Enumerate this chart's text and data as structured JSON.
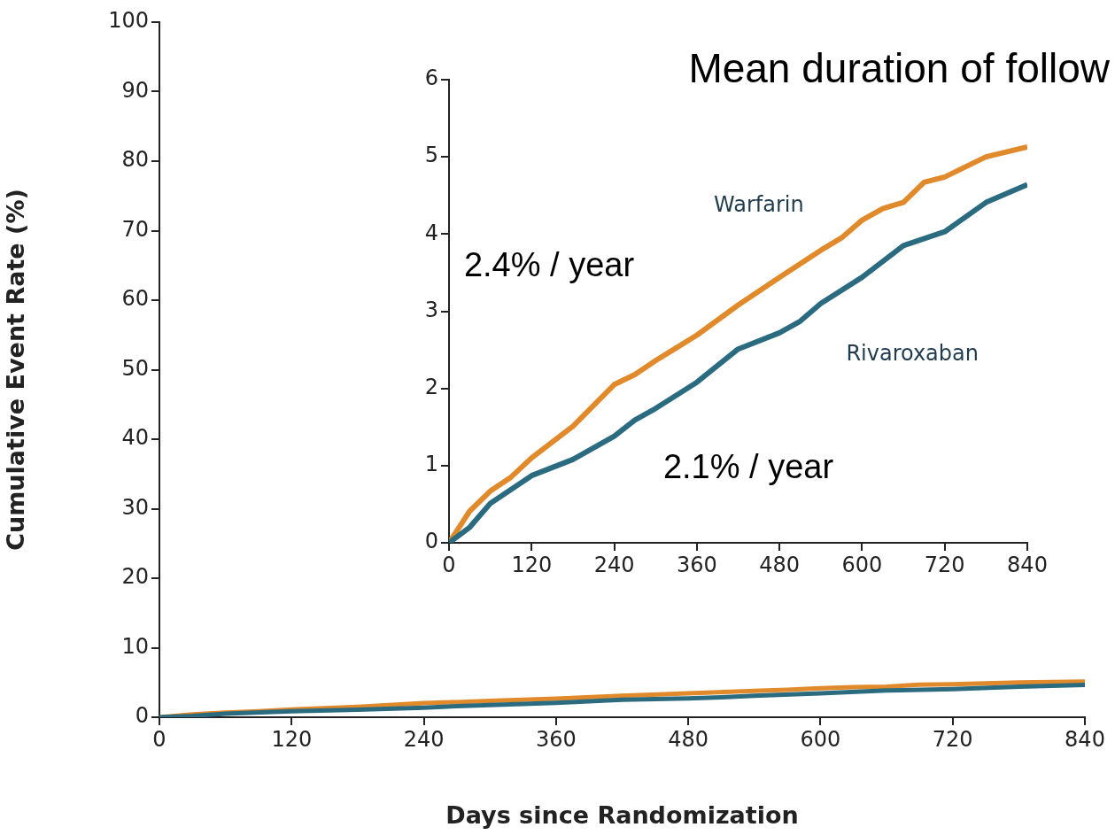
{
  "chart_data": [
    {
      "type": "line",
      "xlabel": "Days since Randomization",
      "ylabel": "Cumulative Event Rate (%)",
      "annotations": [
        "Mean duration of follow"
      ],
      "xlim": [
        0,
        840
      ],
      "xticks": [
        0,
        120,
        240,
        360,
        480,
        600,
        720,
        840
      ],
      "ylim": [
        0,
        100
      ],
      "yticks": [
        0,
        10,
        20,
        30,
        40,
        50,
        60,
        70,
        80,
        90,
        100
      ],
      "grid": false,
      "legend": false,
      "marker": "none",
      "series": [
        {
          "color": "#2b6b80",
          "x": [
            0,
            30,
            60,
            120,
            180,
            240,
            270,
            300,
            360,
            420,
            480,
            510,
            540,
            600,
            660,
            720,
            780,
            840
          ],
          "values": [
            0,
            0.2,
            0.51,
            0.87,
            1.08,
            1.38,
            1.59,
            1.74,
            2.08,
            2.51,
            2.72,
            2.87,
            3.1,
            3.44,
            3.85,
            4.03,
            4.41,
            4.64
          ]
        },
        {
          "color": "#e08a2c",
          "x": [
            0,
            30,
            60,
            90,
            120,
            180,
            240,
            270,
            300,
            360,
            420,
            480,
            540,
            570,
            600,
            630,
            660,
            690,
            720,
            780,
            840
          ],
          "values": [
            0,
            0.41,
            0.67,
            0.85,
            1.1,
            1.51,
            2.05,
            2.18,
            2.36,
            2.69,
            3.08,
            3.44,
            3.79,
            3.95,
            4.18,
            4.33,
            4.41,
            4.67,
            4.74,
            5.0,
            5.13
          ]
        }
      ]
    },
    {
      "type": "line",
      "annotations": [
        "2.4% / year",
        "2.1% / year"
      ],
      "xlim": [
        0,
        840
      ],
      "xticks": [
        0,
        120,
        240,
        360,
        480,
        600,
        720,
        840
      ],
      "ylim": [
        0,
        6
      ],
      "yticks": [
        0,
        1,
        2,
        3,
        4,
        5,
        6
      ],
      "grid": false,
      "legend": false,
      "marker": "none",
      "series": [
        {
          "name": "Rivaroxaban",
          "color": "#2b6b80",
          "x": [
            0,
            30,
            60,
            120,
            180,
            240,
            270,
            300,
            360,
            420,
            480,
            510,
            540,
            600,
            660,
            720,
            780,
            840
          ],
          "values": [
            0,
            0.2,
            0.51,
            0.87,
            1.08,
            1.38,
            1.59,
            1.74,
            2.08,
            2.51,
            2.72,
            2.87,
            3.1,
            3.44,
            3.85,
            4.03,
            4.41,
            4.64
          ]
        },
        {
          "name": "Warfarin",
          "color": "#e08a2c",
          "x": [
            0,
            30,
            60,
            90,
            120,
            180,
            240,
            270,
            300,
            360,
            420,
            480,
            540,
            570,
            600,
            630,
            660,
            690,
            720,
            780,
            840
          ],
          "values": [
            0,
            0.41,
            0.67,
            0.85,
            1.1,
            1.51,
            2.05,
            2.18,
            2.36,
            2.69,
            3.08,
            3.44,
            3.79,
            3.95,
            4.18,
            4.33,
            4.41,
            4.67,
            4.74,
            5.0,
            5.13
          ]
        }
      ]
    }
  ]
}
